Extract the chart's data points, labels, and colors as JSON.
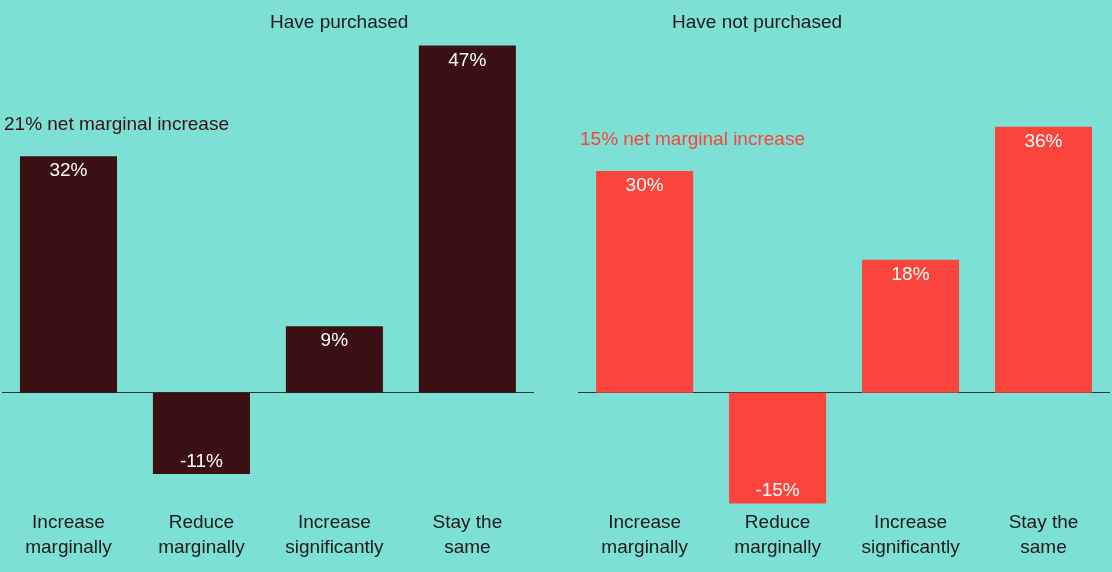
{
  "chart_data": [
    {
      "type": "bar",
      "title": "Have purchased",
      "categories": [
        "Increase marginally",
        "Reduce marginally",
        "Increase significantly",
        "Stay the same"
      ],
      "values": [
        32,
        -11,
        9,
        47
      ],
      "color": "#3b1012",
      "value_labels": [
        "32%",
        "-11%",
        "9%",
        "47%"
      ],
      "annotations": [
        "21% net marginal increase"
      ]
    },
    {
      "type": "bar",
      "title": "Have not purchased",
      "categories": [
        "Increase marginally",
        "Reduce marginally",
        "Increase significantly",
        "Stay the same"
      ],
      "values": [
        30,
        -15,
        18,
        36
      ],
      "color": "#fb443c",
      "value_labels": [
        "30%",
        "-15%",
        "18%",
        "36%"
      ],
      "annotations": [
        "15% net marginal increase"
      ]
    }
  ]
}
